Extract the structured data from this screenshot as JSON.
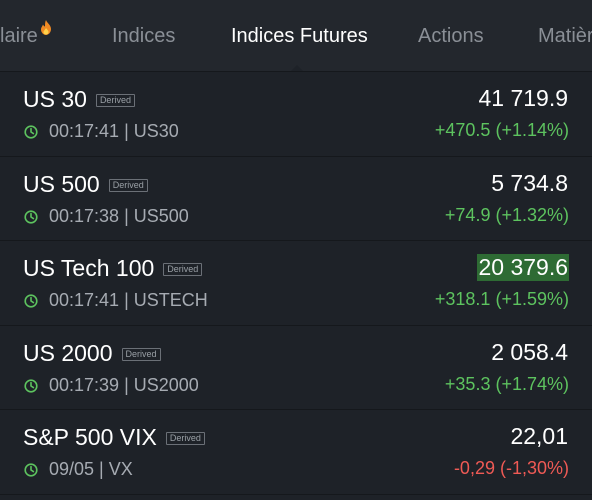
{
  "tabs": [
    {
      "label": "laire",
      "active": false
    },
    {
      "label": "Indices",
      "active": false
    },
    {
      "label": "Indices Futures",
      "active": true
    },
    {
      "label": "Actions",
      "active": false
    },
    {
      "label": "Matièr",
      "active": false
    }
  ],
  "colors": {
    "up": "#5dc35f",
    "down": "#ef5a55",
    "highlight": "#2e6b34",
    "clock": "#5dc35f"
  },
  "rows": [
    {
      "name": "US 30",
      "badge": "Derived",
      "time": "00:17:41",
      "symbol": "US30",
      "meta": "00:17:41 | US30",
      "price": "41 719.9",
      "change": "+470.5 (+1.14%)",
      "direction": "up",
      "highlight": false
    },
    {
      "name": "US 500",
      "badge": "Derived",
      "time": "00:17:38",
      "symbol": "US500",
      "meta": "00:17:38 | US500",
      "price": "5 734.8",
      "change": "+74.9 (+1.32%)",
      "direction": "up",
      "highlight": false
    },
    {
      "name": "US Tech 100",
      "badge": "Derived",
      "time": "00:17:41",
      "symbol": "USTECH",
      "meta": "00:17:41 | USTECH",
      "price": "20 379.6",
      "change": "+318.1 (+1.59%)",
      "direction": "up",
      "highlight": true
    },
    {
      "name": "US 2000",
      "badge": "Derived",
      "time": "00:17:39",
      "symbol": "US2000",
      "meta": "00:17:39 | US2000",
      "price": "2 058.4",
      "change": "+35.3 (+1.74%)",
      "direction": "up",
      "highlight": false
    },
    {
      "name": "S&P 500 VIX",
      "badge": "Derived",
      "time": "09/05",
      "symbol": "VX",
      "meta": "09/05 | VX",
      "price": "22,01",
      "change": "-0,29 (-1,30%)",
      "direction": "down",
      "highlight": false
    }
  ]
}
